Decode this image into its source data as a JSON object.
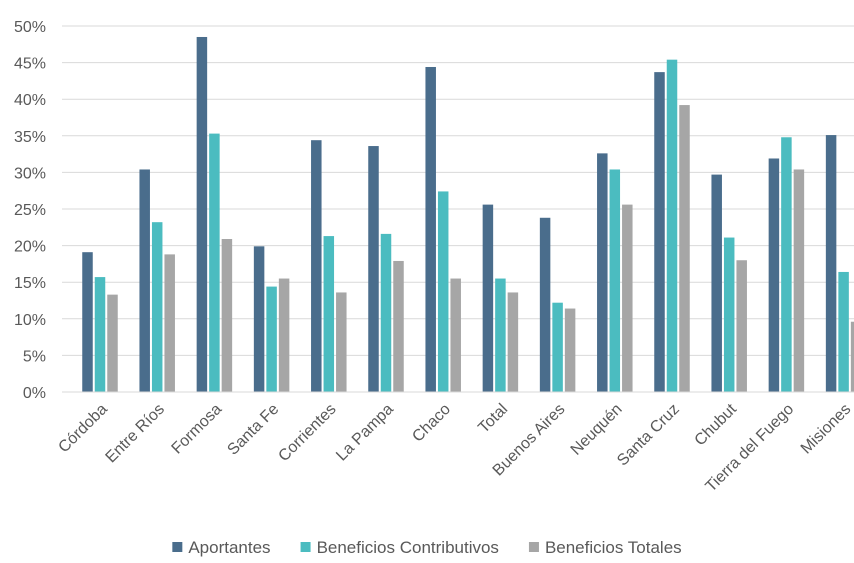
{
  "chart_data": {
    "type": "bar",
    "title": "",
    "xlabel": "",
    "ylabel": "",
    "ylim": [
      0,
      50
    ],
    "y_tick_step": 5,
    "y_tick_format": "percent",
    "grid": "horizontal",
    "legend_position": "bottom",
    "categories": [
      "Córdoba",
      "Entre Ríos",
      "Formosa",
      "Santa Fe",
      "Corrientes",
      "La Pampa",
      "Chaco",
      "Total",
      "Buenos Aires",
      "Neuquén",
      "Santa Cruz",
      "Chubut",
      "Tierra del Fuego",
      "Misiones"
    ],
    "series": [
      {
        "name": "Aportantes",
        "color": "#4A6D8C",
        "values": [
          19.1,
          30.4,
          48.5,
          19.9,
          34.4,
          33.6,
          44.4,
          25.6,
          23.8,
          32.6,
          43.7,
          29.7,
          31.9,
          35.1
        ]
      },
      {
        "name": "Beneficios Contributivos",
        "color": "#4BBCC0",
        "values": [
          15.7,
          23.2,
          35.3,
          14.4,
          21.3,
          21.6,
          27.4,
          15.5,
          12.2,
          30.4,
          45.4,
          21.1,
          34.8,
          16.4
        ]
      },
      {
        "name": "Beneficios Totales",
        "color": "#A6A6A6",
        "values": [
          13.3,
          18.8,
          20.9,
          15.5,
          13.6,
          17.9,
          15.5,
          13.6,
          11.4,
          25.6,
          39.2,
          18.0,
          30.4,
          9.6
        ]
      }
    ]
  },
  "colors": {
    "axis": "#D9D9D9",
    "grid": "#D9D9D9",
    "text": "#595959"
  }
}
